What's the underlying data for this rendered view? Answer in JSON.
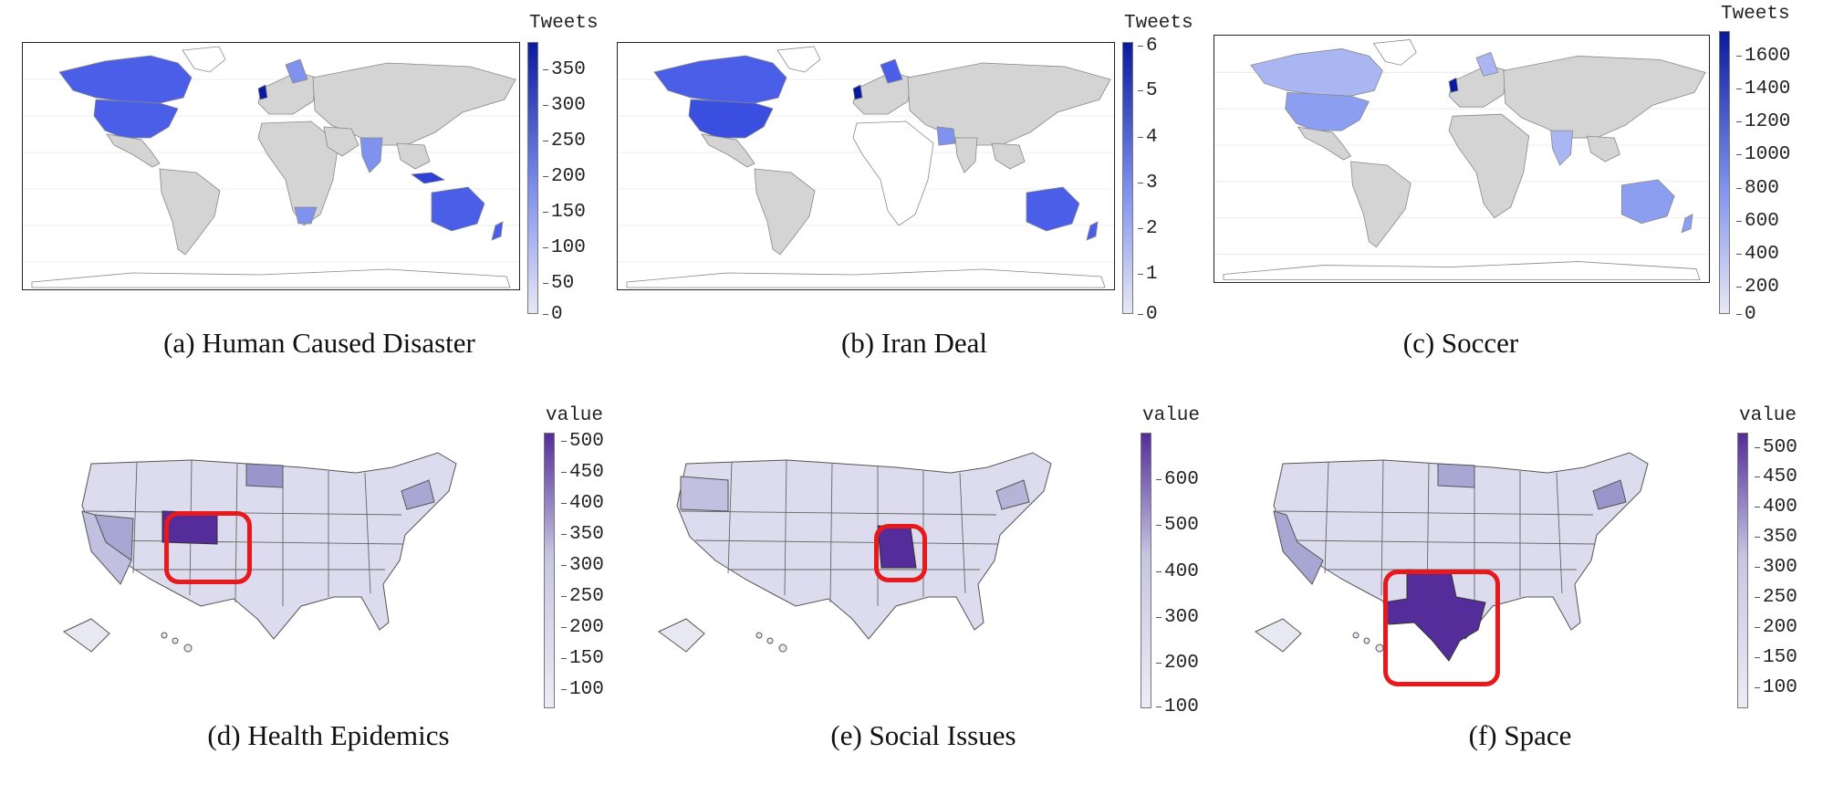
{
  "figure": {
    "panels": [
      {
        "id": "a",
        "caption": "(a) Human Caused Disaster",
        "map": "world",
        "legend_title": "Tweets",
        "ticks": [
          "350",
          "300",
          "250",
          "200",
          "150",
          "100",
          "50",
          "0"
        ],
        "max": 390,
        "highlight_countries": [
          "United States",
          "Canada",
          "Australia",
          "United Kingdom"
        ]
      },
      {
        "id": "b",
        "caption": "(b) Iran Deal",
        "map": "world",
        "legend_title": "Tweets",
        "ticks": [
          "6",
          "5",
          "4",
          "3",
          "2",
          "1",
          "0"
        ],
        "max": 6,
        "highlight_countries": [
          "United States",
          "Canada",
          "Australia",
          "United Kingdom",
          "Iran"
        ]
      },
      {
        "id": "c",
        "caption": "(c) Soccer",
        "map": "world",
        "legend_title": "Tweets",
        "ticks": [
          "1600",
          "1400",
          "1200",
          "1000",
          "800",
          "600",
          "400",
          "200",
          "0"
        ],
        "max": 1700,
        "highlight_countries": [
          "United States",
          "United Kingdom",
          "Australia"
        ]
      },
      {
        "id": "d",
        "caption": "(d) Health Epidemics",
        "map": "usa",
        "legend_title": "value",
        "ticks": [
          "500",
          "450",
          "400",
          "350",
          "300",
          "250",
          "200",
          "150",
          "100"
        ],
        "max": 510,
        "highlighted_state": "Wyoming"
      },
      {
        "id": "e",
        "caption": "(e) Social Issues",
        "map": "usa",
        "legend_title": "value",
        "ticks": [
          "600",
          "500",
          "400",
          "300",
          "200",
          "100"
        ],
        "max": 700,
        "highlighted_state": "Missouri"
      },
      {
        "id": "f",
        "caption": "(f) Space",
        "map": "usa",
        "legend_title": "value",
        "ticks": [
          "500",
          "450",
          "400",
          "350",
          "300",
          "250",
          "200",
          "150",
          "100"
        ],
        "max": 530,
        "highlighted_state": "Texas"
      }
    ],
    "colors": {
      "world_low": "#e8e8f5",
      "world_high": "#0a1aa0",
      "world_land": "#d4d4d4",
      "world_hot": "#4a5ee8",
      "world_warm": "#7f92ee",
      "us_low": "#ecebf6",
      "us_mid": "#c7c6e2",
      "us_high": "#552d9a",
      "highlight_box": "#e8191c"
    }
  }
}
